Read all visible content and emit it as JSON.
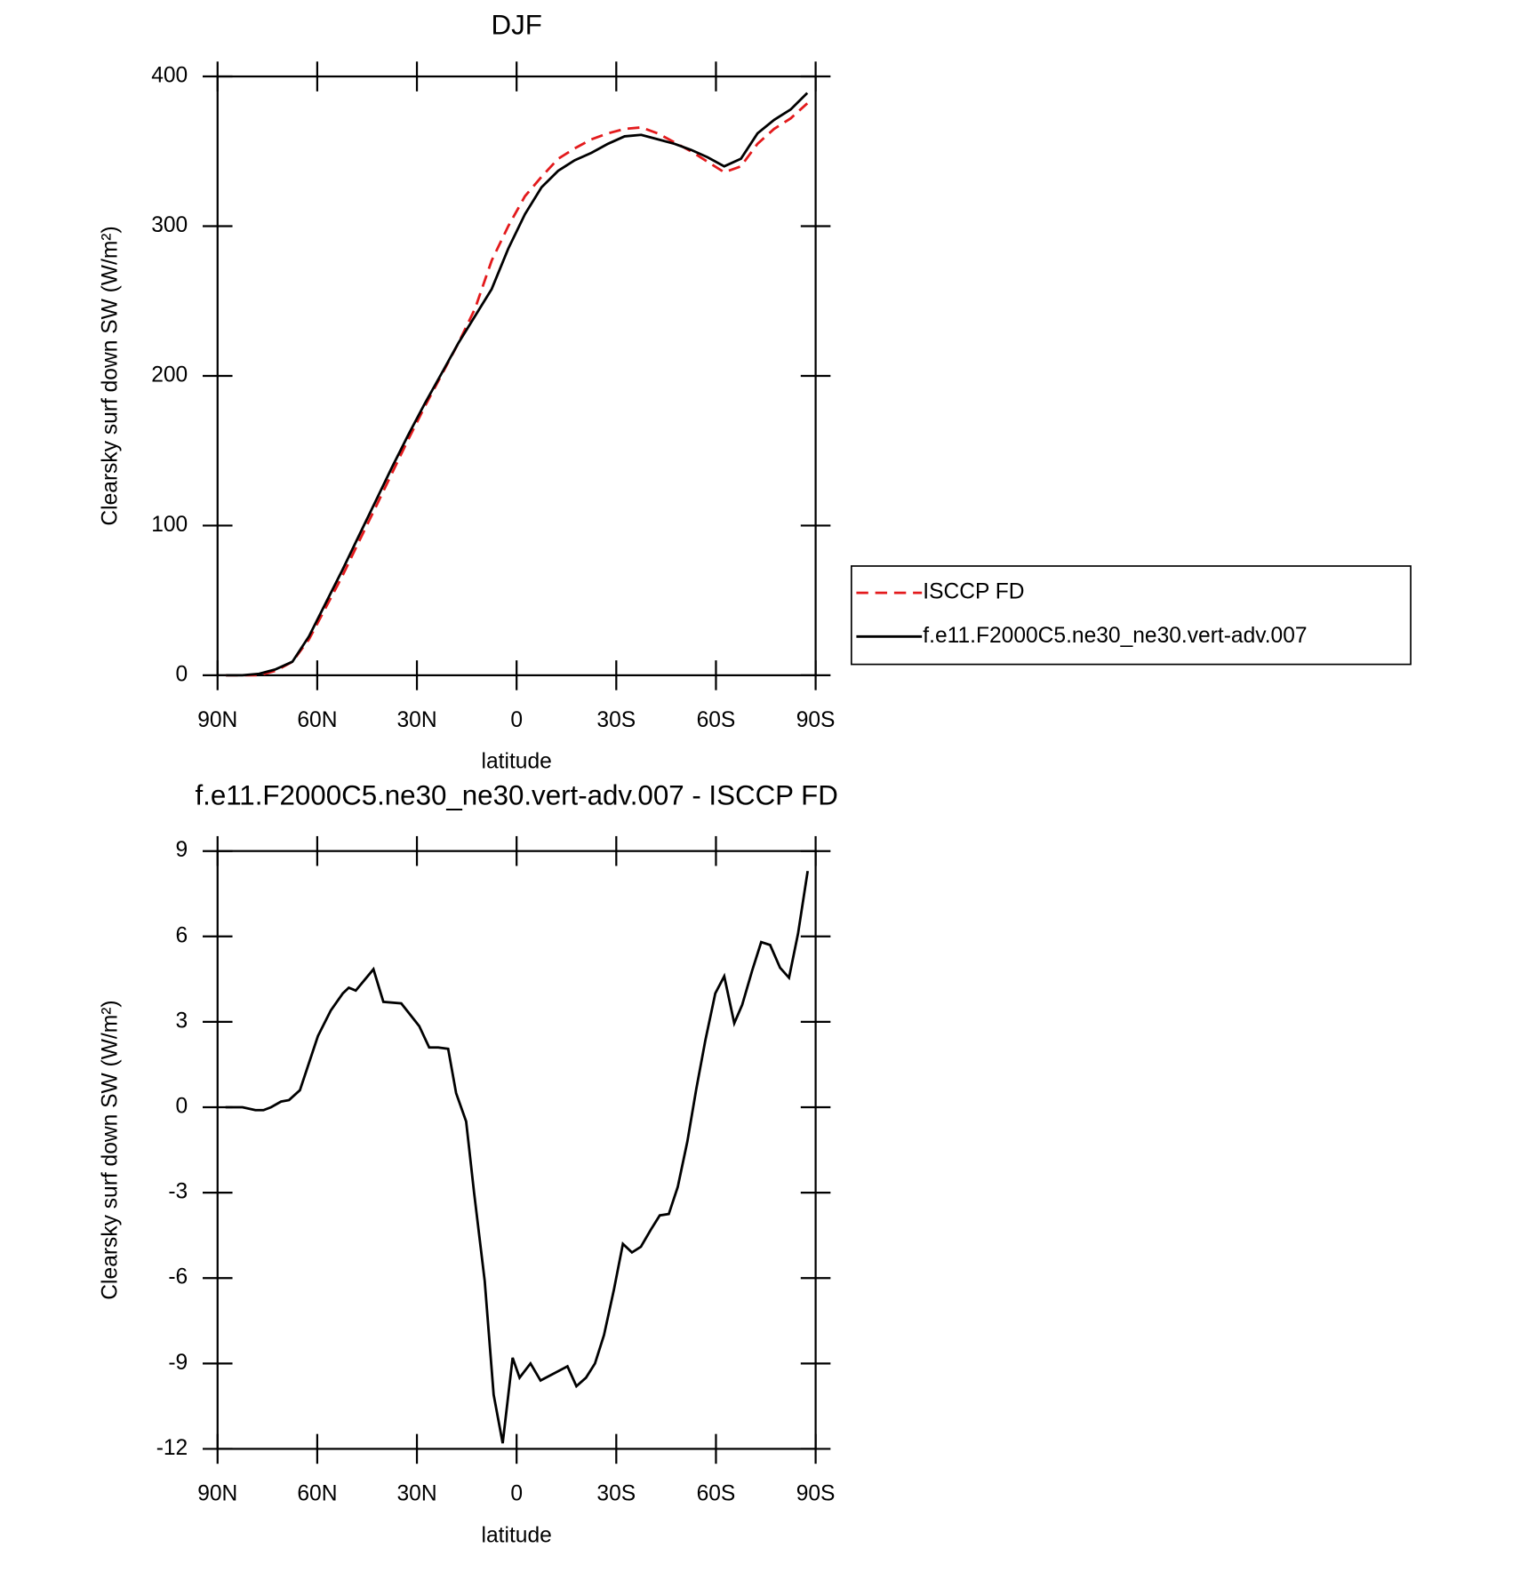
{
  "chart_data": [
    {
      "type": "line",
      "title": "DJF",
      "xlabel": "latitude",
      "ylabel": "Clearsky surf down SW (W/m²)",
      "xlim": [
        90,
        -90
      ],
      "ylim": [
        0,
        400
      ],
      "xticks": [
        {
          "value": 90,
          "label": "90N"
        },
        {
          "value": 60,
          "label": "60N"
        },
        {
          "value": 30,
          "label": "30N"
        },
        0,
        {
          "value": -30,
          "label": "30S"
        },
        {
          "value": -60,
          "label": "60S"
        },
        {
          "value": -90,
          "label": "90S"
        }
      ],
      "yticks": [
        0,
        100,
        200,
        300,
        400
      ],
      "x": [
        87.5,
        82.5,
        77.5,
        72.5,
        67.5,
        62.5,
        57.5,
        52.5,
        47.5,
        42.5,
        37.5,
        32.5,
        27.5,
        22.5,
        17.5,
        12.5,
        7.5,
        2.5,
        -2.5,
        -7.5,
        -12.5,
        -17.5,
        -22.5,
        -27.5,
        -32.5,
        -37.5,
        -42.5,
        -47.5,
        -52.5,
        -57.5,
        -62.5,
        -67.5,
        -72.5,
        -77.5,
        -82.5,
        -87.5
      ],
      "series": [
        {
          "name": "ISCCP FD",
          "color": "#e31a1c",
          "dash": "12,7",
          "values": [
            0,
            0,
            0,
            3,
            9,
            24,
            45,
            66,
            89,
            112,
            135,
            158,
            180,
            201,
            222,
            245,
            277,
            300,
            320,
            333,
            345,
            352,
            358,
            362,
            365,
            366,
            362,
            356,
            350,
            343,
            336,
            340,
            355,
            365,
            372,
            382
          ]
        },
        {
          "name": "f.e11.F2000C5.ne30_ne30.vert-adv.007",
          "color": "#000000",
          "values": [
            0,
            0,
            1,
            4,
            9,
            26,
            48,
            70,
            93,
            116,
            139,
            161,
            182,
            202,
            222,
            240,
            258,
            285,
            308,
            326,
            337,
            344,
            349,
            355,
            360,
            361,
            358,
            355,
            351,
            346,
            340,
            345,
            362,
            371,
            378,
            389
          ]
        }
      ]
    },
    {
      "type": "line",
      "title": "f.e11.F2000C5.ne30_ne30.vert-adv.007 - ISCCP FD",
      "xlabel": "latitude",
      "ylabel": "Clearsky surf down SW (W/m²)",
      "xlim": [
        90,
        -90
      ],
      "ylim": [
        -12,
        9
      ],
      "xticks": [
        {
          "value": 90,
          "label": "90N"
        },
        {
          "value": 60,
          "label": "60N"
        },
        {
          "value": 30,
          "label": "30N"
        },
        0,
        {
          "value": -30,
          "label": "30S"
        },
        {
          "value": -60,
          "label": "60S"
        },
        {
          "value": -90,
          "label": "90S"
        }
      ],
      "yticks": [
        -12,
        -9,
        -6,
        -3,
        0,
        3,
        6,
        9
      ],
      "x": [
        87.6,
        82.5,
        78.6,
        76.2,
        73.9,
        70.9,
        68.5,
        65.2,
        59.8,
        55.9,
        52.3,
        50.5,
        48.4,
        43.1,
        40.1,
        34.7,
        29.3,
        26.3,
        23.6,
        20.6,
        18.2,
        15.2,
        12.8,
        9.6,
        6.9,
        4.2,
        1.2,
        -0.9,
        -4.2,
        -7.2,
        -15.3,
        -18.0,
        -20.9,
        -23.6,
        -26.3,
        -29.3,
        -32.0,
        -34.7,
        -37.4,
        -40.4,
        -43.1,
        -45.8,
        -48.5,
        -51.4,
        -54.1,
        -56.8,
        -59.8,
        -62.5,
        -65.5,
        -67.9,
        -70.9,
        -73.6,
        -76.3,
        -79.3,
        -82.0,
        -84.7,
        -87.6
      ],
      "series": [
        {
          "name": "f.e11.F2000C5.ne30_ne30.vert-adv.007 - ISCCP FD",
          "color": "#000000",
          "values": [
            0,
            0,
            -0.1,
            -0.1,
            0.0,
            0.2,
            0.25,
            0.6,
            2.5,
            3.4,
            4.0,
            4.2,
            4.1,
            4.85,
            3.7,
            3.65,
            2.85,
            2.1,
            2.1,
            2.05,
            0.5,
            -0.5,
            -3.0,
            -6.1,
            -10.1,
            -11.8,
            -8.8,
            -9.5,
            -9.0,
            -9.6,
            -9.1,
            -9.8,
            -9.5,
            -9.0,
            -8.0,
            -6.4,
            -4.8,
            -5.1,
            -4.9,
            -4.3,
            -3.8,
            -3.75,
            -2.8,
            -1.2,
            0.65,
            2.35,
            4.0,
            4.6,
            2.95,
            3.6,
            4.8,
            5.8,
            5.7,
            4.9,
            4.55,
            6.1,
            8.3
          ]
        }
      ]
    }
  ]
}
